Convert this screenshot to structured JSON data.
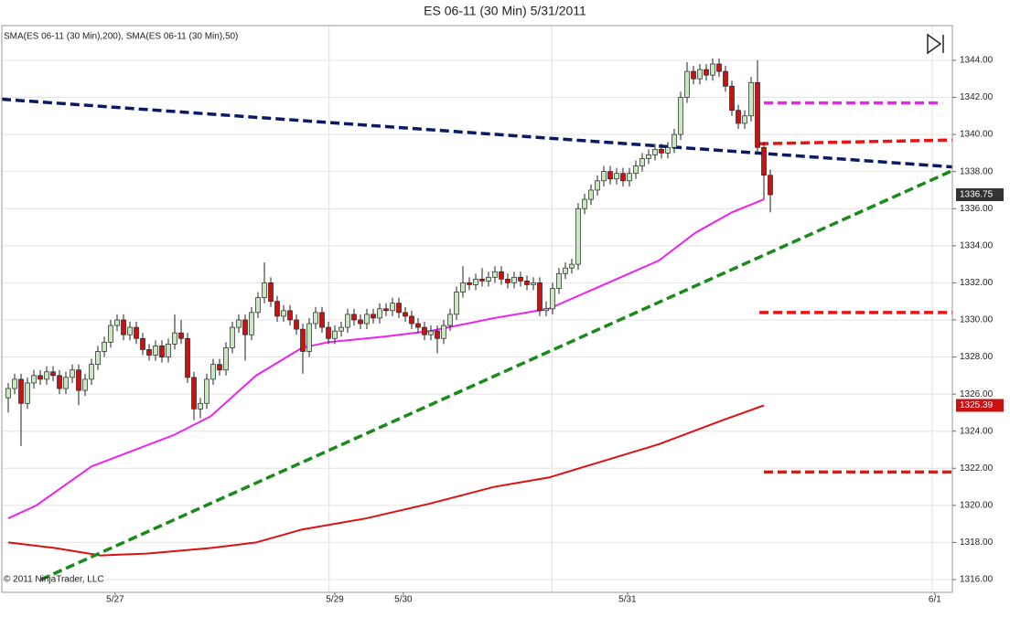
{
  "chart_data": {
    "type": "candlestick",
    "title": "ES 06-11 (30 Min)  5/31/2011",
    "subtitle": "SMA(ES 06-11 (30 Min),200), SMA(ES 06-11 (30 Min),50)",
    "copyright": "© 2011 NinjaTrader, LLC",
    "up_color": "#c9e8c2",
    "down_color": "#cc1111",
    "xlim": [
      -1,
      147.43
    ],
    "xticks": [
      {
        "value": 16.7,
        "label": "5/27"
      },
      {
        "value": 51,
        "label": "5/29"
      },
      {
        "value": 61.7,
        "label": "5/30"
      },
      {
        "value": 96.7,
        "label": "5/31"
      },
      {
        "value": 144.7,
        "label": "6/1"
      }
    ],
    "x_gridlines": [
      50.1,
      84.9,
      144.3
    ],
    "ylim": [
      1315.31,
      1345.87
    ],
    "yticks": [
      {
        "value": 1316,
        "label": "1316.00"
      },
      {
        "value": 1318,
        "label": "1318.00"
      },
      {
        "value": 1320,
        "label": "1320.00"
      },
      {
        "value": 1322,
        "label": "1322.00"
      },
      {
        "value": 1324,
        "label": "1324.00"
      },
      {
        "value": 1326,
        "label": "1326.00"
      },
      {
        "value": 1328,
        "label": "1328.00"
      },
      {
        "value": 1330,
        "label": "1330.00"
      },
      {
        "value": 1332,
        "label": "1332.00"
      },
      {
        "value": 1334,
        "label": "1334.00"
      },
      {
        "value": 1336,
        "label": "1336.00"
      },
      {
        "value": 1338,
        "label": "1338.00"
      },
      {
        "value": 1340,
        "label": "1340.00"
      },
      {
        "value": 1342,
        "label": "1342.00"
      },
      {
        "value": 1344,
        "label": "1344.00"
      }
    ],
    "grid": true,
    "ohlc": [
      [
        1325.8,
        1326.6,
        1325.0,
        1326.3
      ],
      [
        1326.3,
        1327.1,
        1326.0,
        1326.8
      ],
      [
        1326.8,
        1327.1,
        1323.2,
        1325.5
      ],
      [
        1325.5,
        1326.9,
        1325.2,
        1326.6
      ],
      [
        1326.6,
        1327.3,
        1326.3,
        1327.0
      ],
      [
        1327.0,
        1327.3,
        1326.5,
        1326.8
      ],
      [
        1326.8,
        1327.5,
        1326.5,
        1327.2
      ],
      [
        1327.2,
        1327.5,
        1326.7,
        1327.0
      ],
      [
        1327.0,
        1327.3,
        1326.0,
        1326.3
      ],
      [
        1326.3,
        1327.2,
        1326.0,
        1326.9
      ],
      [
        1326.9,
        1327.6,
        1326.6,
        1327.3
      ],
      [
        1327.3,
        1327.6,
        1325.4,
        1326.2
      ],
      [
        1326.2,
        1327.1,
        1325.9,
        1326.8
      ],
      [
        1326.8,
        1327.9,
        1326.5,
        1327.6
      ],
      [
        1327.6,
        1328.6,
        1327.3,
        1328.3
      ],
      [
        1328.3,
        1329.1,
        1328.0,
        1328.8
      ],
      [
        1328.8,
        1330.0,
        1328.5,
        1329.7
      ],
      [
        1329.7,
        1330.3,
        1329.4,
        1330.0
      ],
      [
        1330.0,
        1330.3,
        1328.9,
        1329.2
      ],
      [
        1329.2,
        1329.9,
        1328.9,
        1329.6
      ],
      [
        1329.6,
        1329.9,
        1328.7,
        1329.0
      ],
      [
        1329.0,
        1329.3,
        1328.1,
        1328.4
      ],
      [
        1328.4,
        1328.7,
        1327.8,
        1328.1
      ],
      [
        1328.1,
        1328.9,
        1327.8,
        1328.6
      ],
      [
        1328.6,
        1328.9,
        1327.7,
        1328.0
      ],
      [
        1328.0,
        1329.0,
        1327.7,
        1328.7
      ],
      [
        1328.7,
        1330.3,
        1328.4,
        1329.3
      ],
      [
        1329.3,
        1330.0,
        1328.7,
        1329.0
      ],
      [
        1329.0,
        1329.3,
        1326.6,
        1326.9
      ],
      [
        1326.9,
        1327.2,
        1324.6,
        1325.2
      ],
      [
        1325.2,
        1325.8,
        1324.7,
        1325.5
      ],
      [
        1325.5,
        1327.1,
        1325.2,
        1326.8
      ],
      [
        1326.8,
        1327.9,
        1326.5,
        1327.6
      ],
      [
        1327.6,
        1327.9,
        1327.0,
        1327.3
      ],
      [
        1327.3,
        1328.8,
        1327.0,
        1328.5
      ],
      [
        1328.5,
        1329.9,
        1328.2,
        1329.6
      ],
      [
        1329.6,
        1330.3,
        1329.3,
        1330.0
      ],
      [
        1330.0,
        1330.3,
        1327.8,
        1329.2
      ],
      [
        1329.2,
        1330.7,
        1328.9,
        1330.4
      ],
      [
        1330.4,
        1331.5,
        1330.1,
        1331.2
      ],
      [
        1331.2,
        1333.1,
        1330.9,
        1332.0
      ],
      [
        1332.0,
        1332.3,
        1330.7,
        1331.0
      ],
      [
        1331.0,
        1331.3,
        1329.9,
        1330.2
      ],
      [
        1330.2,
        1330.8,
        1329.9,
        1330.5
      ],
      [
        1330.5,
        1330.8,
        1329.7,
        1330.0
      ],
      [
        1330.0,
        1330.3,
        1329.2,
        1329.5
      ],
      [
        1329.5,
        1329.8,
        1327.1,
        1328.3
      ],
      [
        1328.3,
        1330.1,
        1328.0,
        1329.8
      ],
      [
        1329.8,
        1330.7,
        1329.5,
        1330.4
      ],
      [
        1330.4,
        1330.7,
        1329.3,
        1329.6
      ],
      [
        1329.6,
        1329.9,
        1328.7,
        1329.0
      ],
      [
        1329.0,
        1329.7,
        1328.7,
        1329.4
      ],
      [
        1329.4,
        1329.9,
        1329.1,
        1329.6
      ],
      [
        1329.6,
        1330.6,
        1329.3,
        1330.3
      ],
      [
        1330.3,
        1330.6,
        1329.7,
        1330.0
      ],
      [
        1330.0,
        1330.3,
        1329.5,
        1329.8
      ],
      [
        1329.8,
        1330.6,
        1329.5,
        1330.3
      ],
      [
        1330.3,
        1330.6,
        1329.8,
        1330.1
      ],
      [
        1330.1,
        1330.9,
        1329.8,
        1330.6
      ],
      [
        1330.6,
        1330.9,
        1330.2,
        1330.5
      ],
      [
        1330.5,
        1331.2,
        1330.2,
        1330.9
      ],
      [
        1330.9,
        1331.2,
        1330.1,
        1330.4
      ],
      [
        1330.4,
        1330.7,
        1329.9,
        1330.2
      ],
      [
        1330.2,
        1330.5,
        1329.5,
        1329.8
      ],
      [
        1329.8,
        1330.1,
        1329.3,
        1329.6
      ],
      [
        1329.6,
        1329.9,
        1328.9,
        1329.2
      ],
      [
        1329.2,
        1329.7,
        1328.9,
        1329.4
      ],
      [
        1329.4,
        1329.7,
        1328.2,
        1329.0
      ],
      [
        1329.0,
        1330.0,
        1328.7,
        1329.7
      ],
      [
        1329.7,
        1330.6,
        1329.4,
        1330.3
      ],
      [
        1330.3,
        1331.8,
        1330.0,
        1331.5
      ],
      [
        1331.5,
        1332.9,
        1331.2,
        1332.0
      ],
      [
        1332.0,
        1332.3,
        1331.6,
        1331.9
      ],
      [
        1331.9,
        1332.5,
        1331.6,
        1332.2
      ],
      [
        1332.2,
        1332.8,
        1331.8,
        1332.1
      ],
      [
        1332.1,
        1332.6,
        1331.8,
        1332.3
      ],
      [
        1332.3,
        1332.9,
        1332.0,
        1332.6
      ],
      [
        1332.6,
        1332.9,
        1331.9,
        1332.2
      ],
      [
        1332.2,
        1332.5,
        1331.7,
        1332.0
      ],
      [
        1332.0,
        1332.6,
        1331.7,
        1332.3
      ],
      [
        1332.3,
        1332.6,
        1331.8,
        1332.1
      ],
      [
        1332.1,
        1332.4,
        1331.6,
        1331.9
      ],
      [
        1331.9,
        1332.3,
        1331.6,
        1332.0
      ],
      [
        1332.0,
        1332.3,
        1330.2,
        1330.5
      ],
      [
        1330.5,
        1331.0,
        1330.2,
        1330.6
      ],
      [
        1330.6,
        1332.0,
        1330.3,
        1331.7
      ],
      [
        1331.7,
        1332.8,
        1331.4,
        1332.5
      ],
      [
        1332.5,
        1333.1,
        1332.2,
        1332.8
      ],
      [
        1332.8,
        1333.3,
        1332.5,
        1333.0
      ],
      [
        1333.0,
        1336.3,
        1332.7,
        1336.0
      ],
      [
        1336.0,
        1336.8,
        1335.7,
        1336.5
      ],
      [
        1336.5,
        1337.3,
        1336.2,
        1337.0
      ],
      [
        1337.0,
        1337.8,
        1336.7,
        1337.5
      ],
      [
        1337.5,
        1338.3,
        1337.2,
        1338.0
      ],
      [
        1338.0,
        1338.3,
        1337.3,
        1337.6
      ],
      [
        1337.6,
        1338.2,
        1337.3,
        1337.9
      ],
      [
        1337.9,
        1338.2,
        1337.2,
        1337.5
      ],
      [
        1337.5,
        1338.2,
        1337.2,
        1337.9
      ],
      [
        1337.9,
        1338.6,
        1337.6,
        1338.3
      ],
      [
        1338.3,
        1339.0,
        1338.0,
        1338.7
      ],
      [
        1338.7,
        1339.2,
        1338.4,
        1338.9
      ],
      [
        1338.9,
        1339.5,
        1338.6,
        1339.2
      ],
      [
        1339.2,
        1339.5,
        1338.7,
        1339.0
      ],
      [
        1339.0,
        1339.6,
        1338.7,
        1339.3
      ],
      [
        1339.3,
        1340.3,
        1339.0,
        1340.0
      ],
      [
        1340.0,
        1342.3,
        1339.7,
        1342.0
      ],
      [
        1342.0,
        1343.9,
        1341.7,
        1343.4
      ],
      [
        1343.4,
        1343.7,
        1342.7,
        1343.0
      ],
      [
        1343.0,
        1343.8,
        1342.7,
        1343.5
      ],
      [
        1343.5,
        1343.8,
        1342.9,
        1343.2
      ],
      [
        1343.2,
        1344.1,
        1342.9,
        1343.8
      ],
      [
        1343.8,
        1344.1,
        1343.1,
        1343.4
      ],
      [
        1343.4,
        1343.7,
        1342.3,
        1342.6
      ],
      [
        1342.6,
        1342.9,
        1341.0,
        1341.3
      ],
      [
        1341.3,
        1341.6,
        1340.3,
        1340.6
      ],
      [
        1340.6,
        1341.3,
        1340.3,
        1341.0
      ],
      [
        1341.0,
        1343.1,
        1340.7,
        1342.8
      ],
      [
        1342.8,
        1344.0,
        1339.0,
        1339.3
      ],
      [
        1339.3,
        1339.6,
        1336.5,
        1337.8
      ],
      [
        1337.8,
        1338.1,
        1335.8,
        1336.75
      ]
    ],
    "series": [
      {
        "color": "#ee22ee",
        "x": [
          0,
          4.4,
          13,
          25.9,
          31.6,
          38.7,
          45.9,
          50,
          58.7,
          65.9,
          75.9,
          84.4,
          93,
          101.6,
          107.3,
          113,
          118
        ],
        "values": [
          1319.3,
          1320.0,
          1322.1,
          1323.8,
          1324.8,
          1327.0,
          1328.5,
          1328.8,
          1329.1,
          1329.4,
          1330.1,
          1330.6,
          1331.9,
          1333.2,
          1334.7,
          1335.8,
          1336.5
        ]
      },
      {
        "color": "#dd1111",
        "x": [
          0,
          7.3,
          14.4,
          21.6,
          31.6,
          38.7,
          45.9,
          55.9,
          65.9,
          75.9,
          84.4,
          93,
          101.6,
          111.6,
          118
        ],
        "values": [
          1318.0,
          1317.7,
          1317.3,
          1317.4,
          1317.7,
          1318.0,
          1318.7,
          1319.3,
          1320.1,
          1321.0,
          1321.5,
          1322.4,
          1323.3,
          1324.6,
          1325.39
        ],
        "marker_color": "#cc1111"
      }
    ],
    "trendlines": [
      {
        "color": "#0a1a66",
        "x": [
          -1,
          147.43
        ],
        "values": [
          1341.9,
          1338.25
        ]
      },
      {
        "color": "#1a8a1a",
        "x": [
          5.1,
          147.43
        ],
        "values": [
          1316,
          1338.05
        ]
      },
      {
        "color": "#ee22ee",
        "x": [
          118,
          145.9
        ],
        "values": [
          1341.7,
          1341.7
        ]
      },
      {
        "color": "#ee1111",
        "x": [
          117.3,
          147.43
        ],
        "values": [
          1339.5,
          1339.7
        ]
      },
      {
        "color": "#ee1111",
        "x": [
          117.3,
          147.43
        ],
        "values": [
          1330.4,
          1330.4
        ]
      },
      {
        "color": "#ee1111",
        "x": [
          118,
          147.3
        ],
        "values": [
          1321.8,
          1321.8
        ]
      }
    ],
    "last_price_color": "#333333"
  }
}
